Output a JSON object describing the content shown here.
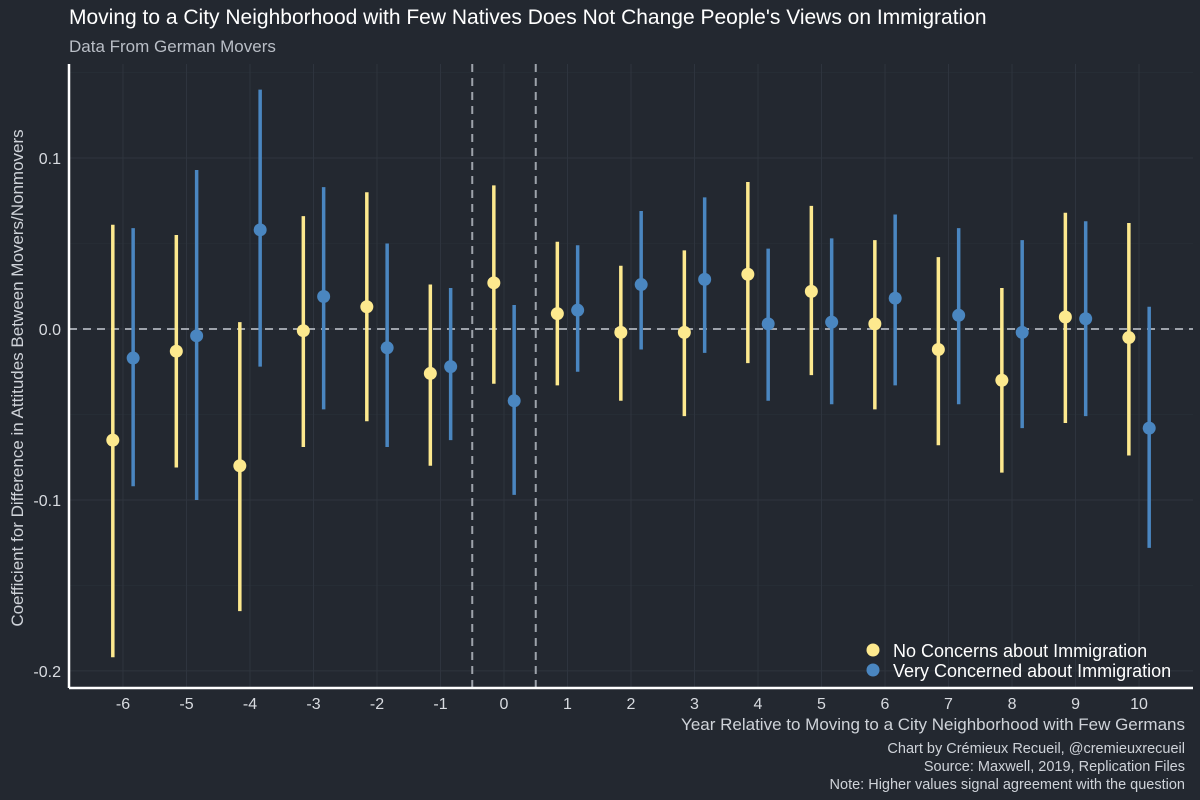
{
  "chart_data": {
    "type": "scatter",
    "title": "Moving to a City Neighborhood with Few Natives Does Not Change People's Views on Immigration",
    "subtitle": "Data From German Movers",
    "xlabel": "Year Relative to Moving to a City Neighborhood with Few Germans",
    "ylabel": "Coefficient for Difference in Attitudes Between Movers/Nonmovers",
    "x": [
      -6,
      -5,
      -4,
      -3,
      -2,
      -1,
      0,
      1,
      2,
      3,
      4,
      5,
      6,
      7,
      8,
      9,
      10
    ],
    "x_tick_labels": [
      "-6",
      "-5",
      "-4",
      "-3",
      "-2",
      "-1",
      "0",
      "1",
      "2",
      "3",
      "4",
      "5",
      "6",
      "7",
      "8",
      "9",
      "10"
    ],
    "ylim": [
      -0.21,
      0.155
    ],
    "y_ticks": [
      -0.2,
      -0.1,
      0.0,
      0.1
    ],
    "y_tick_labels": [
      "-0.2",
      "-0.1",
      "0.0",
      "0.1"
    ],
    "reference_lines": {
      "horizontal": 0,
      "vertical": [
        -0.5,
        0.5
      ]
    },
    "grid": true,
    "legend": "bottom-right",
    "series": [
      {
        "name": "No Concerns about Immigration",
        "color": "#fde98e",
        "values": [
          -0.065,
          -0.013,
          -0.08,
          -0.001,
          0.013,
          -0.026,
          0.027,
          0.009,
          -0.002,
          -0.002,
          0.032,
          0.022,
          0.003,
          -0.012,
          -0.03,
          0.007,
          -0.005
        ],
        "lower": [
          -0.192,
          -0.081,
          -0.165,
          -0.069,
          -0.054,
          -0.08,
          -0.032,
          -0.033,
          -0.042,
          -0.051,
          -0.02,
          -0.027,
          -0.047,
          -0.068,
          -0.084,
          -0.055,
          -0.074
        ],
        "upper": [
          0.061,
          0.055,
          0.004,
          0.066,
          0.08,
          0.026,
          0.084,
          0.051,
          0.037,
          0.046,
          0.086,
          0.072,
          0.052,
          0.042,
          0.024,
          0.068,
          0.062
        ]
      },
      {
        "name": "Very Concerned about Immigration",
        "color": "#4a86c0",
        "values": [
          -0.017,
          -0.004,
          0.058,
          0.019,
          -0.011,
          -0.022,
          -0.042,
          0.011,
          0.026,
          0.029,
          0.003,
          0.004,
          0.018,
          0.008,
          -0.002,
          0.006,
          -0.058
        ],
        "lower": [
          -0.092,
          -0.1,
          -0.022,
          -0.047,
          -0.069,
          -0.065,
          -0.097,
          -0.025,
          -0.012,
          -0.014,
          -0.042,
          -0.044,
          -0.033,
          -0.044,
          -0.058,
          -0.051,
          -0.128
        ],
        "upper": [
          0.059,
          0.093,
          0.14,
          0.083,
          0.05,
          0.024,
          0.014,
          0.049,
          0.069,
          0.077,
          0.047,
          0.053,
          0.067,
          0.059,
          0.052,
          0.063,
          0.013
        ]
      }
    ]
  },
  "caption": {
    "line1": "Chart by Crémieux Recueil, @cremieuxrecueil",
    "line2": "Source: Maxwell, 2019, Replication Files",
    "line3": "Note: Higher values signal agreement with the question"
  },
  "colors": {
    "background": "#232830",
    "no_concerns": "#fde98e",
    "very_concerned": "#4a86c0"
  }
}
